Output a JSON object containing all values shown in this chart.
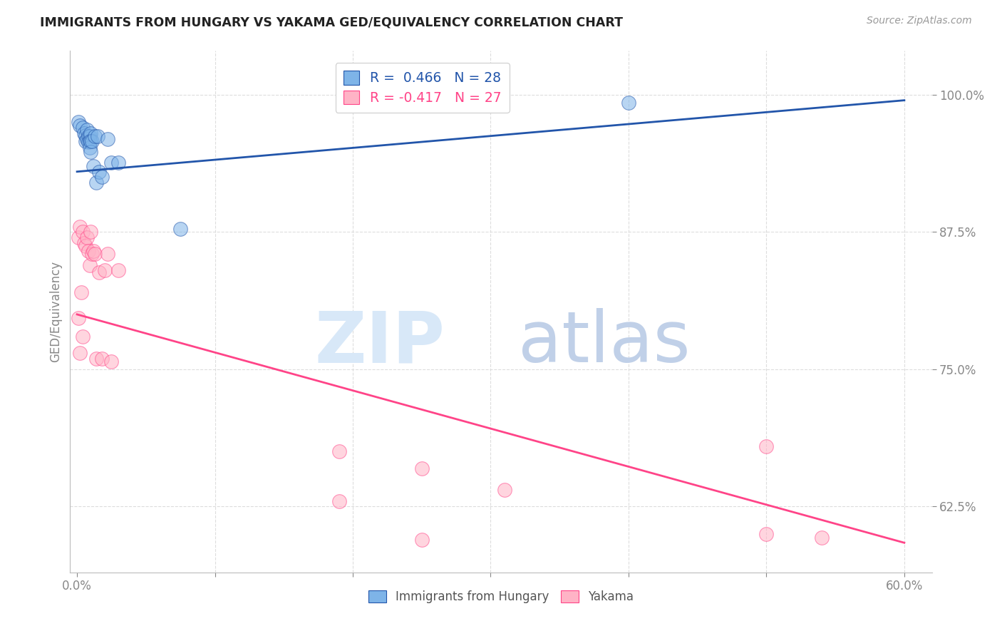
{
  "title": "IMMIGRANTS FROM HUNGARY VS YAKAMA GED/EQUIVALENCY CORRELATION CHART",
  "source": "Source: ZipAtlas.com",
  "ylabel": "GED/Equivalency",
  "ytick_labels": [
    "100.0%",
    "87.5%",
    "75.0%",
    "62.5%"
  ],
  "ytick_values": [
    1.0,
    0.875,
    0.75,
    0.625
  ],
  "xmin": -0.005,
  "xmax": 0.62,
  "ymin": 0.565,
  "ymax": 1.04,
  "blue_R": 0.466,
  "blue_N": 28,
  "pink_R": -0.417,
  "pink_N": 27,
  "blue_color": "#7EB4E8",
  "pink_color": "#FFB3C6",
  "blue_line_color": "#2255AA",
  "pink_line_color": "#FF4488",
  "legend_label_blue": "Immigrants from Hungary",
  "legend_label_pink": "Yakama",
  "blue_scatter_x": [
    0.001,
    0.002,
    0.004,
    0.005,
    0.006,
    0.006,
    0.007,
    0.007,
    0.008,
    0.008,
    0.009,
    0.009,
    0.009,
    0.01,
    0.01,
    0.01,
    0.011,
    0.012,
    0.013,
    0.014,
    0.015,
    0.016,
    0.018,
    0.022,
    0.025,
    0.03,
    0.075,
    0.4
  ],
  "blue_scatter_y": [
    0.975,
    0.972,
    0.97,
    0.965,
    0.963,
    0.958,
    0.968,
    0.96,
    0.962,
    0.957,
    0.962,
    0.958,
    0.952,
    0.965,
    0.958,
    0.948,
    0.958,
    0.935,
    0.962,
    0.92,
    0.962,
    0.93,
    0.925,
    0.96,
    0.938,
    0.938,
    0.878,
    0.993
  ],
  "pink_scatter_x": [
    0.001,
    0.002,
    0.004,
    0.005,
    0.006,
    0.007,
    0.008,
    0.009,
    0.01,
    0.011,
    0.012,
    0.013,
    0.014,
    0.016,
    0.018,
    0.02,
    0.022,
    0.025,
    0.03,
    0.19,
    0.25,
    0.31,
    0.5,
    0.54
  ],
  "pink_scatter_y": [
    0.87,
    0.88,
    0.875,
    0.865,
    0.862,
    0.87,
    0.858,
    0.845,
    0.875,
    0.855,
    0.858,
    0.855,
    0.76,
    0.838,
    0.76,
    0.84,
    0.855,
    0.757,
    0.84,
    0.675,
    0.66,
    0.64,
    0.68,
    0.597
  ],
  "pink_scatter_extra_x": [
    0.001,
    0.002,
    0.003,
    0.004,
    0.19,
    0.25,
    0.5
  ],
  "pink_scatter_extra_y": [
    0.797,
    0.765,
    0.82,
    0.78,
    0.63,
    0.595,
    0.6
  ],
  "blue_line_x0": 0.0,
  "blue_line_x1": 0.6,
  "blue_line_y0": 0.93,
  "blue_line_y1": 0.995,
  "pink_line_x0": 0.0,
  "pink_line_x1": 0.6,
  "pink_line_y0": 0.8,
  "pink_line_y1": 0.592,
  "grid_color": "#DDDDDD",
  "spine_color": "#BBBBBB",
  "tick_color": "#888888",
  "ytick_color": "#4488CC",
  "title_color": "#222222",
  "source_color": "#999999",
  "watermark_zip_color": "#D8E8F8",
  "watermark_atlas_color": "#C0D0E8"
}
